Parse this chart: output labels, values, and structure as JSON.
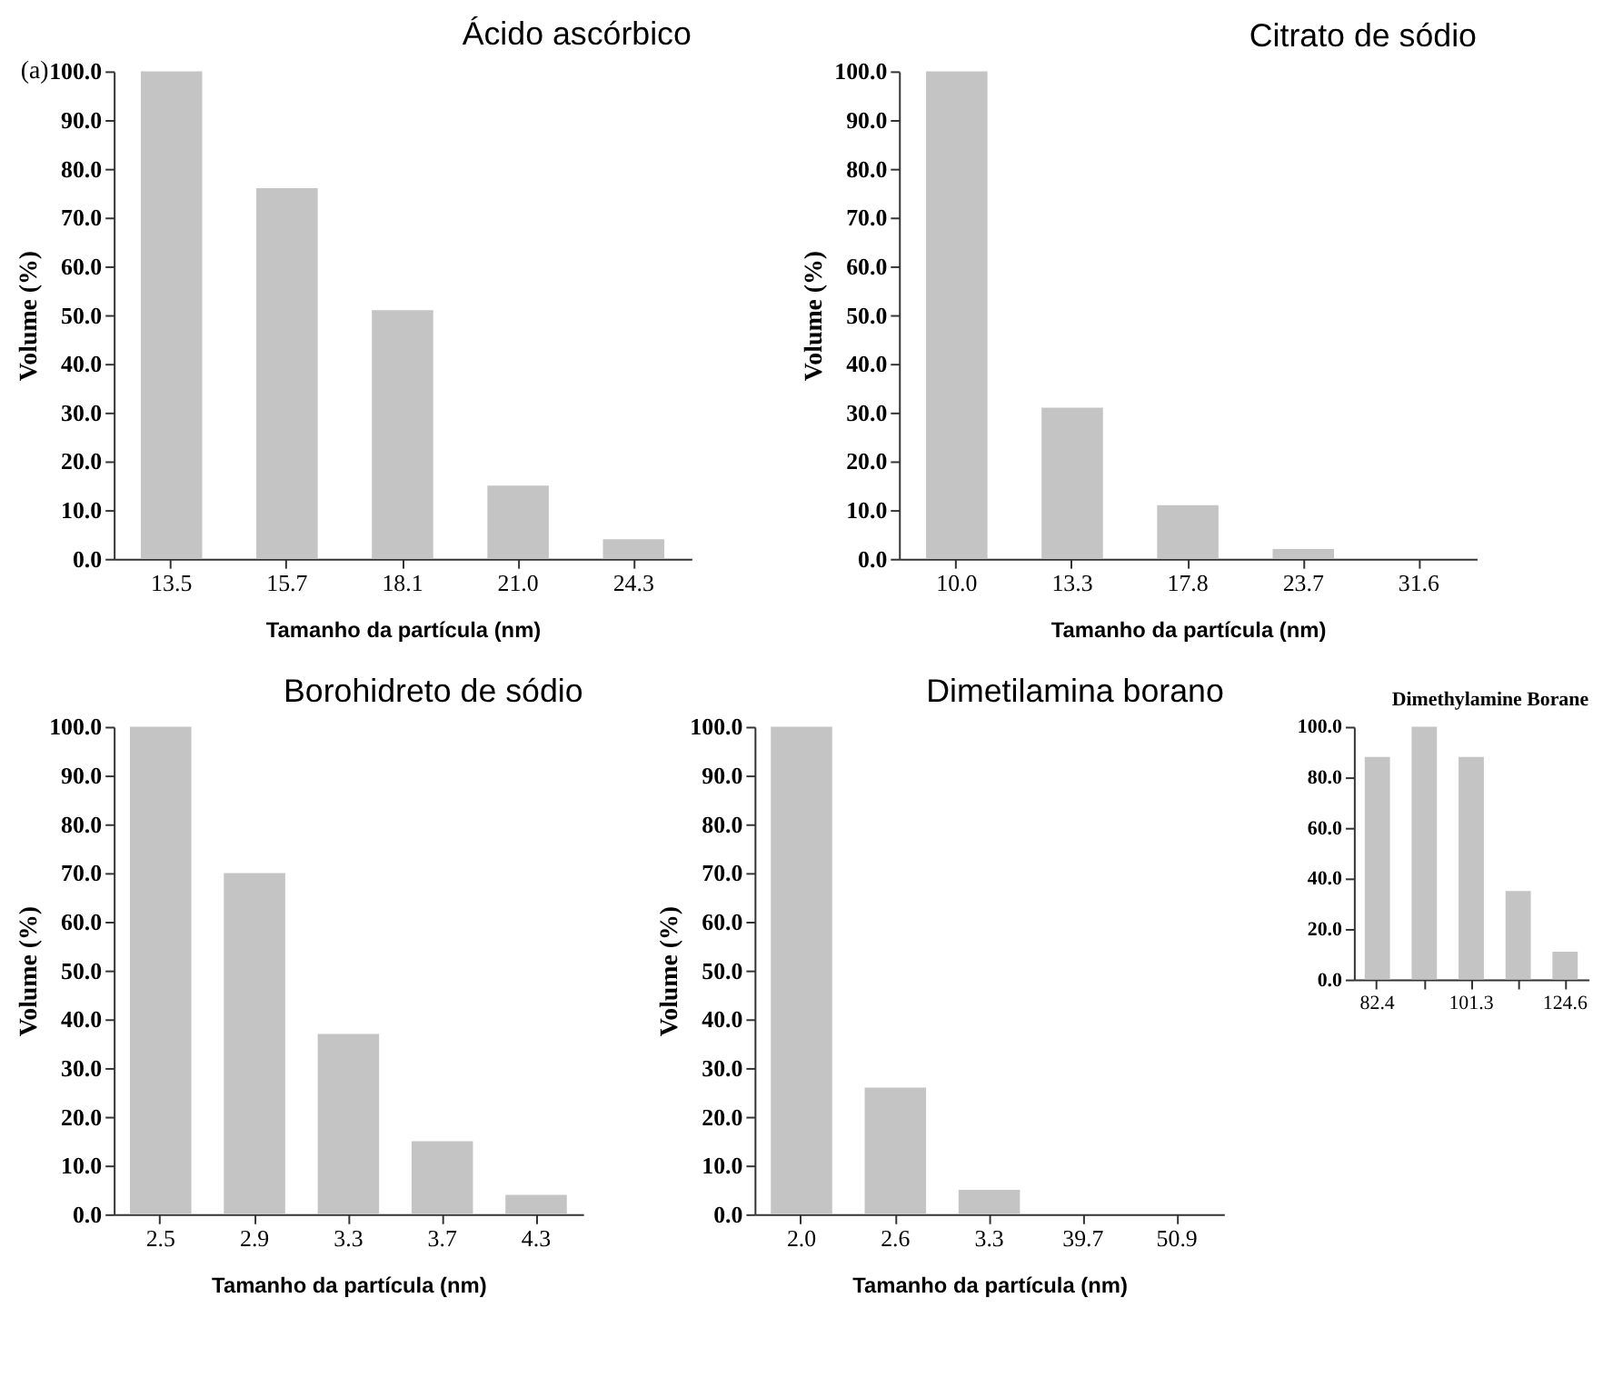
{
  "chart_data": [
    {
      "type": "bar",
      "title": "Ácido ascórbico",
      "xlabel": "Tamanho da partícula (nm)",
      "ylabel": "Volume (%)",
      "annotations": [
        "(a)"
      ],
      "categories": [
        "13.5",
        "15.7",
        "18.1",
        "21.0",
        "24.3"
      ],
      "values": [
        100,
        76,
        51,
        15,
        4
      ],
      "color": "#c4c4c4",
      "ylim": [
        0,
        100
      ],
      "yticks": [
        {
          "value": 0,
          "label": "0.0"
        },
        {
          "value": 10,
          "label": "10.0"
        },
        {
          "value": 20,
          "label": "20.0"
        },
        {
          "value": 30,
          "label": "30.0"
        },
        {
          "value": 40,
          "label": "40.0"
        },
        {
          "value": 50,
          "label": "50.0"
        },
        {
          "value": 60,
          "label": "60.0"
        },
        {
          "value": 70,
          "label": "70.0"
        },
        {
          "value": 80,
          "label": "80.0"
        },
        {
          "value": 90,
          "label": "90.0"
        },
        {
          "value": 100,
          "label": "100.0"
        }
      ]
    },
    {
      "type": "bar",
      "title": "Citrato de sódio",
      "xlabel": "Tamanho da partícula (nm)",
      "ylabel": "Volume (%)",
      "categories": [
        "10.0",
        "13.3",
        "17.8",
        "23.7",
        "31.6"
      ],
      "values": [
        100,
        31,
        11,
        2,
        0
      ],
      "color": "#c4c4c4",
      "ylim": [
        0,
        100
      ],
      "yticks": [
        {
          "value": 0,
          "label": "0.0"
        },
        {
          "value": 10,
          "label": "10.0"
        },
        {
          "value": 20,
          "label": "20.0"
        },
        {
          "value": 30,
          "label": "30.0"
        },
        {
          "value": 40,
          "label": "40.0"
        },
        {
          "value": 50,
          "label": "50.0"
        },
        {
          "value": 60,
          "label": "60.0"
        },
        {
          "value": 70,
          "label": "70.0"
        },
        {
          "value": 80,
          "label": "80.0"
        },
        {
          "value": 90,
          "label": "90.0"
        },
        {
          "value": 100,
          "label": "100.0"
        }
      ]
    },
    {
      "type": "bar",
      "title": "Borohidreto de sódio",
      "xlabel": "Tamanho da partícula (nm)",
      "ylabel": "Volume (%)",
      "categories": [
        "2.5",
        "2.9",
        "3.3",
        "3.7",
        "4.3"
      ],
      "values": [
        100,
        70,
        37,
        15,
        4
      ],
      "color": "#c4c4c4",
      "ylim": [
        0,
        100
      ],
      "yticks": [
        {
          "value": 0,
          "label": "0.0"
        },
        {
          "value": 10,
          "label": "10.0"
        },
        {
          "value": 20,
          "label": "20.0"
        },
        {
          "value": 30,
          "label": "30.0"
        },
        {
          "value": 40,
          "label": "40.0"
        },
        {
          "value": 50,
          "label": "50.0"
        },
        {
          "value": 60,
          "label": "60.0"
        },
        {
          "value": 70,
          "label": "70.0"
        },
        {
          "value": 80,
          "label": "80.0"
        },
        {
          "value": 90,
          "label": "90.0"
        },
        {
          "value": 100,
          "label": "100.0"
        }
      ]
    },
    {
      "type": "bar",
      "title": "Dimetilamina borano",
      "xlabel": "Tamanho da partícula (nm)",
      "ylabel": "Volume (%)",
      "categories": [
        "2.0",
        "2.6",
        "3.3",
        "39.7",
        "50.9"
      ],
      "values": [
        100,
        26,
        5,
        0,
        0
      ],
      "color": "#c4c4c4",
      "ylim": [
        0,
        100
      ],
      "yticks": [
        {
          "value": 0,
          "label": "0.0"
        },
        {
          "value": 10,
          "label": "10.0"
        },
        {
          "value": 20,
          "label": "20.0"
        },
        {
          "value": 30,
          "label": "30.0"
        },
        {
          "value": 40,
          "label": "40.0"
        },
        {
          "value": 50,
          "label": "50.0"
        },
        {
          "value": 60,
          "label": "60.0"
        },
        {
          "value": 70,
          "label": "70.0"
        },
        {
          "value": 80,
          "label": "80.0"
        },
        {
          "value": 90,
          "label": "90.0"
        },
        {
          "value": 100,
          "label": "100.0"
        }
      ]
    },
    {
      "type": "bar",
      "title": "Dimethylamine Borane",
      "categories": [
        "82.4",
        null,
        "101.3",
        null,
        "124.6"
      ],
      "values": [
        88,
        100,
        88,
        35,
        11
      ],
      "color": "#c4c4c4",
      "ylim": [
        0,
        100
      ],
      "yticks": [
        {
          "value": 0,
          "label": "0.0"
        },
        {
          "value": 20,
          "label": "20.0"
        },
        {
          "value": 40,
          "label": "40.0"
        },
        {
          "value": 60,
          "label": "60.0"
        },
        {
          "value": 80,
          "label": "80.0"
        },
        {
          "value": 100,
          "label": "100.0"
        }
      ]
    }
  ]
}
